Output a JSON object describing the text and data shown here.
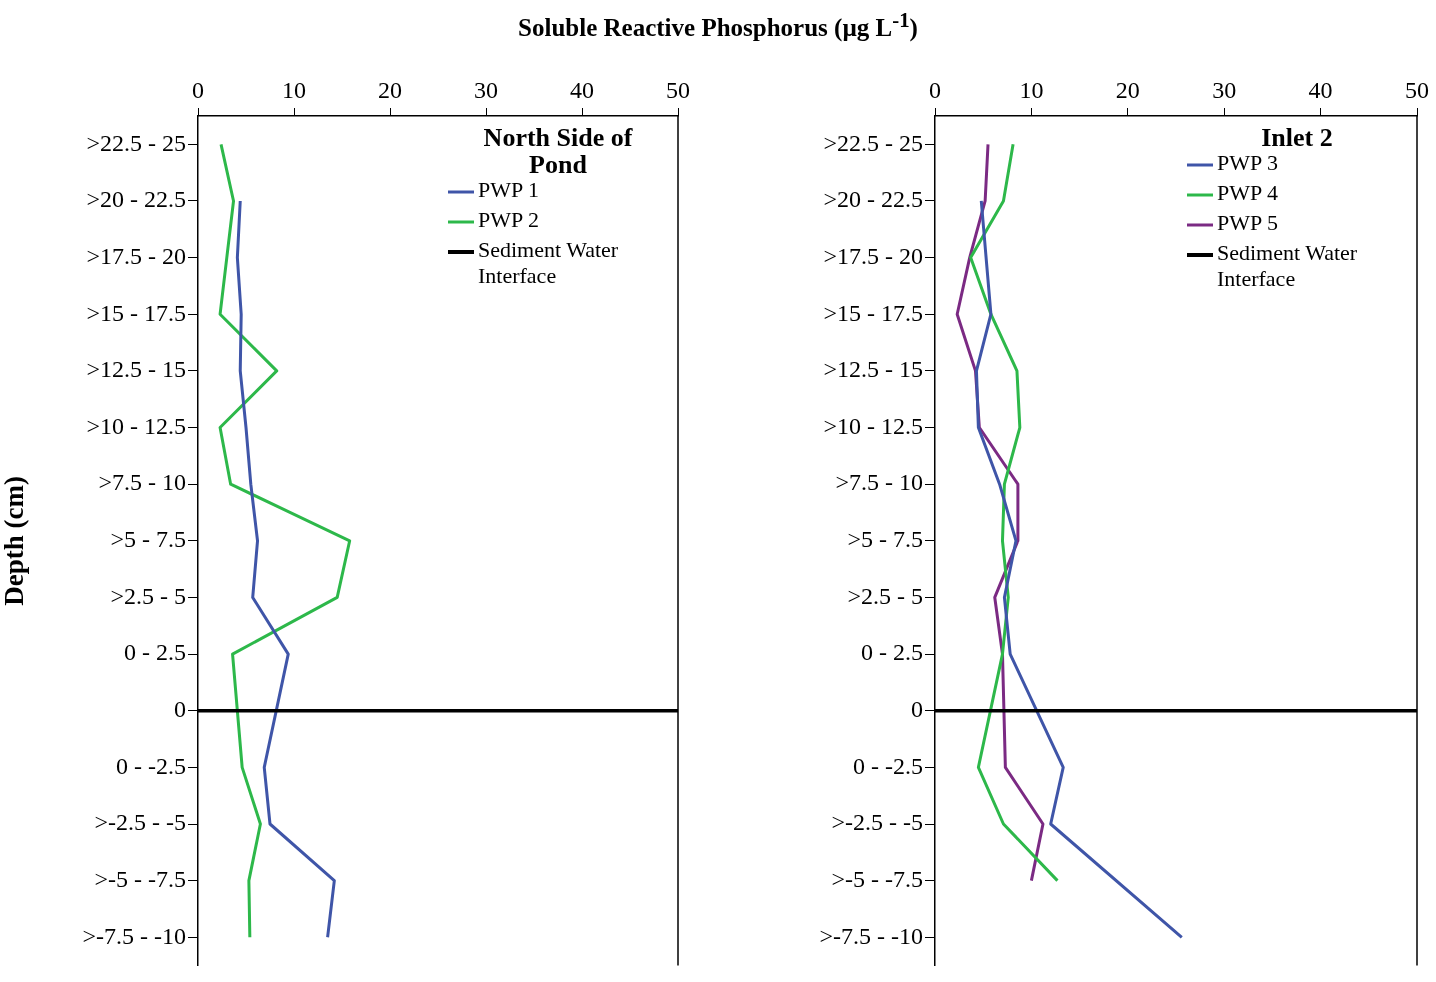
{
  "chart_data": [
    {
      "type": "line",
      "orientation": "horizontal",
      "title": "Soluble Reactive Phosphorus (µg L$^{-1}$)",
      "ylabel": "Depth (cm)",
      "legend_title": "North Side of Pond",
      "legend": "top right",
      "grid": false,
      "marker": "none",
      "categories": [
        ">22.5 - 25",
        ">20 - 22.5",
        ">17.5 - 20",
        ">15 - 17.5",
        ">12.5 - 15",
        ">10 - 12.5",
        ">7.5 - 10",
        ">5 - 7.5",
        ">2.5 - 5",
        "0 - 2.5",
        "0",
        "0 - -2.5",
        ">-2.5 - -5",
        ">-5 - -7.5",
        ">-7.5 - -10"
      ],
      "xlim": [
        0,
        50
      ],
      "xticks": [
        0,
        10,
        20,
        30,
        40,
        50
      ],
      "series": [
        {
          "name": "PWP 1",
          "color": "#3f55a8",
          "values": [
            null,
            4.4,
            4.1,
            4.5,
            4.4,
            5.0,
            5.5,
            6.2,
            5.7,
            9.4,
            null,
            6.9,
            7.5,
            14.2,
            13.5
          ]
        },
        {
          "name": "PWP 2",
          "color": "#2db84a",
          "values": [
            2.4,
            3.7,
            3.0,
            2.3,
            8.2,
            2.3,
            3.4,
            15.8,
            14.5,
            3.6,
            null,
            4.6,
            6.5,
            5.3,
            5.4
          ]
        }
      ],
      "ref_lines": [
        {
          "axis": "y",
          "value": "0",
          "label": "Sediment Water Interface",
          "color": "#000000"
        }
      ]
    },
    {
      "type": "line",
      "orientation": "horizontal",
      "legend_title": "Inlet 2",
      "legend": "top right",
      "grid": false,
      "marker": "none",
      "categories": [
        ">22.5 - 25",
        ">20 - 22.5",
        ">17.5 - 20",
        ">15 - 17.5",
        ">12.5 - 15",
        ">10 - 12.5",
        ">7.5 - 10",
        ">5 - 7.5",
        ">2.5 - 5",
        "0 - 2.5",
        "0",
        "0 - -2.5",
        ">-2.5 - -5",
        ">-5 - -7.5",
        ">-7.5 - -10"
      ],
      "xlim": [
        0,
        50
      ],
      "xticks": [
        0,
        10,
        20,
        30,
        40,
        50
      ],
      "series": [
        {
          "name": "PWP 3",
          "color": "#3f55a8",
          "values": [
            null,
            4.8,
            5.3,
            5.8,
            4.3,
            4.5,
            6.7,
            8.4,
            7.2,
            7.8,
            null,
            13.3,
            12.0,
            null,
            25.6
          ]
        },
        {
          "name": "PWP 4",
          "color": "#2db84a",
          "values": [
            8.1,
            7.1,
            3.7,
            5.8,
            8.5,
            8.8,
            7.2,
            7.0,
            7.6,
            7.0,
            null,
            4.5,
            7.1,
            12.7,
            null
          ]
        },
        {
          "name": "PWP 5",
          "color": "#7b2a83",
          "values": [
            5.5,
            5.2,
            3.6,
            2.3,
            4.2,
            4.6,
            8.6,
            8.6,
            6.2,
            7.0,
            null,
            7.3,
            11.2,
            10.0,
            null
          ]
        }
      ],
      "ref_lines": [
        {
          "axis": "y",
          "value": "0",
          "label": "Sediment Water Interface",
          "color": "#000000"
        }
      ]
    }
  ]
}
